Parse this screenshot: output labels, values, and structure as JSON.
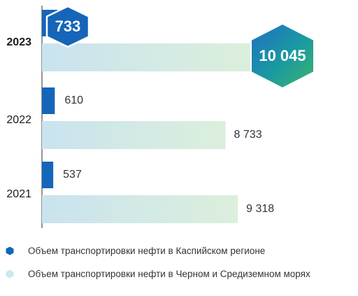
{
  "chart_data": {
    "type": "bar",
    "orientation": "horizontal",
    "categories": [
      "2023",
      "2022",
      "2021"
    ],
    "highlight_category": "2023",
    "series": [
      {
        "name": "Объем транспортировки нефти в Каспийском регионе",
        "values": [
          733,
          610,
          537
        ],
        "labels": [
          "733",
          "610",
          "537"
        ],
        "color": "#1565b8"
      },
      {
        "name": "Объем транспортировки нефти в Черном и Средиземном морях",
        "values": [
          10045,
          8733,
          9318
        ],
        "labels": [
          "10 045",
          "8 733",
          "9 318"
        ],
        "color": "#cde8ee"
      }
    ],
    "legend_position": "bottom",
    "grid": false
  }
}
